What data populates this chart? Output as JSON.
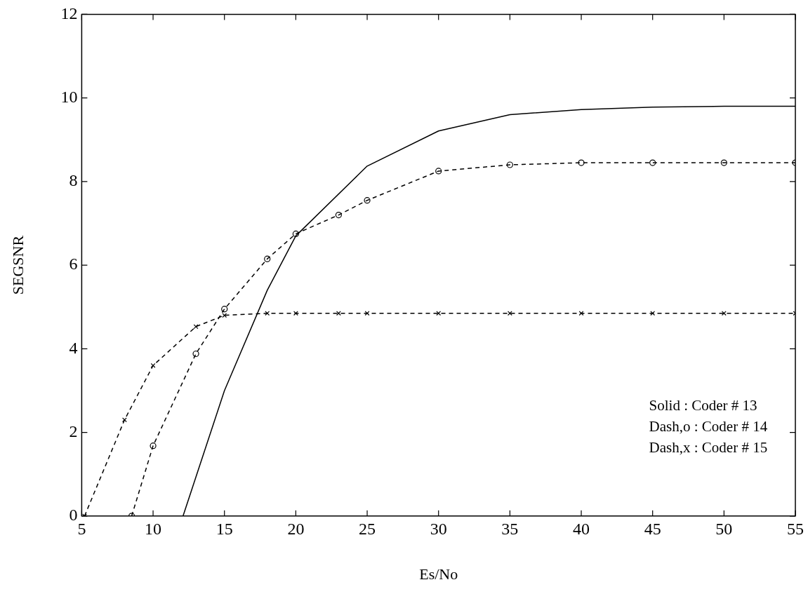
{
  "chart_data": {
    "type": "line",
    "xlabel": "Es/No",
    "ylabel": "SEGSNR",
    "xlim": [
      5,
      55
    ],
    "xticks": [
      5,
      10,
      15,
      20,
      25,
      30,
      35,
      40,
      45,
      50,
      55
    ],
    "ylim": [
      0,
      12
    ],
    "yticks": [
      0,
      2,
      4,
      6,
      8,
      10,
      12
    ],
    "grid": false,
    "legend": false,
    "line_style": "dashed",
    "series": [
      {
        "color": "#000000",
        "line_style": "solid",
        "marker": "none",
        "x": [
          12.1,
          15,
          18,
          20,
          25,
          30,
          35,
          40,
          45,
          50,
          55
        ],
        "values": [
          0,
          3.0,
          5.4,
          6.7,
          8.37,
          9.21,
          9.6,
          9.72,
          9.78,
          9.8,
          9.8
        ]
      },
      {
        "color": "#000000",
        "marker": "circle",
        "x": [
          8.5,
          10,
          13,
          15,
          18,
          20,
          23,
          25,
          30,
          35,
          40,
          45,
          50,
          55
        ],
        "values": [
          0,
          1.68,
          3.88,
          4.95,
          6.15,
          6.75,
          7.2,
          7.55,
          8.25,
          8.4,
          8.45,
          8.45,
          8.45,
          8.45
        ]
      },
      {
        "color": "#000000",
        "marker": "cross",
        "x": [
          5.2,
          8,
          10,
          13,
          15,
          18,
          20,
          23,
          25,
          30,
          35,
          40,
          45,
          50,
          55
        ],
        "values": [
          0,
          2.3,
          3.6,
          4.53,
          4.8,
          4.85,
          4.85,
          4.85,
          4.85,
          4.85,
          4.85,
          4.85,
          4.85,
          4.85,
          4.85
        ]
      }
    ],
    "annotations": [
      "Solid : Coder # 13",
      "Dash,o : Coder # 14",
      "Dash,x : Coder # 15"
    ]
  }
}
